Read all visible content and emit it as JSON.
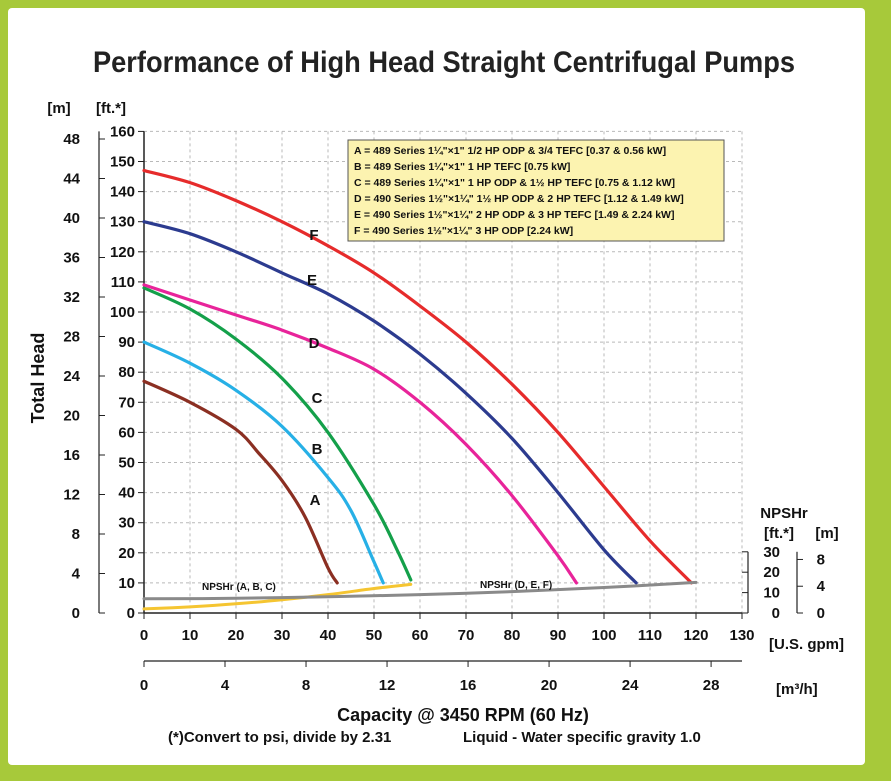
{
  "title": "Performance of High Head Straight Centrifugal Pumps",
  "colors": {
    "frame": "#a7c93a",
    "legend_bg": "#fcf3b0",
    "A": "#8b2f22",
    "B": "#27b0e6",
    "C": "#14a04a",
    "D": "#e8249a",
    "E": "#2c3b8f",
    "F": "#e62b2b",
    "npsh_abc": "#f5c531",
    "npsh_def": "#8a8a8a"
  },
  "chart_data": {
    "type": "line",
    "title": "Performance of High Head Straight Centrifugal Pumps",
    "xlabel": "Capacity @ 3450 RPM (60 Hz)",
    "ylabel": "Total Head",
    "x_unit_primary": "[U.S. gpm]",
    "x_unit_secondary": "[m³/h]",
    "y_unit_ft": "[ft.*]",
    "y_unit_m": "[m]",
    "xlim": [
      0,
      130
    ],
    "ylim": [
      0,
      160
    ],
    "x_ticks": [
      "0",
      "10",
      "20",
      "30",
      "40",
      "50",
      "60",
      "70",
      "80",
      "90",
      "100",
      "110",
      "120",
      "130"
    ],
    "x2_ticks": [
      "0",
      "4",
      "8",
      "12",
      "16",
      "20",
      "24",
      "28"
    ],
    "y_ticks_ft": [
      "0",
      "10",
      "20",
      "30",
      "40",
      "50",
      "60",
      "70",
      "80",
      "90",
      "100",
      "110",
      "120",
      "130",
      "140",
      "150",
      "160"
    ],
    "y_ticks_m": [
      "0",
      "4",
      "8",
      "12",
      "16",
      "20",
      "24",
      "28",
      "32",
      "36",
      "40",
      "44",
      "48"
    ],
    "grid": true,
    "legend": {
      "placement": "top-right",
      "entries": [
        "A = 489 Series 1¼\"×1\" 1/2 HP ODP & 3/4 TEFC [0.37 & 0.56 kW]",
        "B = 489 Series 1¼\"×1\" 1 HP TEFC [0.75 kW]",
        "C = 489 Series 1¼\"×1\" 1 HP ODP & 1½ HP TEFC [0.75 & 1.12 kW]",
        "D = 490 Series 1½\"×1¼\" 1½ HP ODP & 2 HP TEFC [1.12 & 1.49 kW]",
        "E = 490 Series 1½\"×1¼\" 2 HP ODP & 3 HP TEFC [1.49 & 2.24 kW]",
        "F = 490 Series 1½\"×1¼\" 3 HP ODP [2.24 kW]"
      ]
    },
    "series": [
      {
        "name": "A",
        "x": [
          0,
          10,
          20,
          25,
          30,
          35,
          40,
          42
        ],
        "y": [
          77,
          70,
          61,
          53,
          44,
          32,
          15,
          10
        ]
      },
      {
        "name": "B",
        "x": [
          0,
          10,
          20,
          30,
          40,
          45,
          50,
          52
        ],
        "y": [
          90,
          83,
          74,
          62,
          45,
          34,
          17,
          10
        ]
      },
      {
        "name": "C",
        "x": [
          0,
          10,
          20,
          30,
          40,
          50,
          55,
          58
        ],
        "y": [
          108,
          101,
          91,
          78,
          60,
          36,
          21,
          11
        ]
      },
      {
        "name": "D",
        "x": [
          0,
          10,
          20,
          30,
          40,
          50,
          60,
          70,
          80,
          90,
          94
        ],
        "y": [
          109,
          104,
          99,
          94,
          88,
          81,
          70,
          56,
          39,
          19,
          10
        ]
      },
      {
        "name": "E",
        "x": [
          0,
          10,
          20,
          30,
          40,
          50,
          60,
          70,
          80,
          90,
          100,
          107
        ],
        "y": [
          130,
          126,
          120,
          113,
          106,
          97,
          86,
          73,
          58,
          40,
          21,
          10
        ]
      },
      {
        "name": "F",
        "x": [
          0,
          10,
          20,
          30,
          40,
          50,
          60,
          70,
          80,
          90,
          100,
          110,
          119
        ],
        "y": [
          147,
          143,
          137,
          130,
          122,
          113,
          102,
          90,
          76,
          60,
          42,
          24,
          10
        ]
      }
    ],
    "npsh": {
      "y_label": "NPSHr",
      "unit_ft": "[ft.*]",
      "unit_m": "[m]",
      "ticks_ft": [
        "0",
        "10",
        "20",
        "30"
      ],
      "ticks_m": [
        "0",
        "4",
        "8"
      ],
      "ylim_ft": [
        0,
        30
      ],
      "series": [
        {
          "name": "NPSHr (A, B, C)",
          "x": [
            0,
            10,
            20,
            30,
            40,
            50,
            58
          ],
          "y_ft": [
            2,
            3,
            4.5,
            6.5,
            9,
            12,
            14
          ]
        },
        {
          "name": "NPSHr (D, E, F)",
          "x": [
            0,
            20,
            40,
            60,
            80,
            100,
            120
          ],
          "y_ft": [
            7,
            7.2,
            8,
            9,
            10.5,
            12.5,
            15
          ]
        }
      ]
    }
  },
  "footer": {
    "capacity_label": "Capacity @ 3450 RPM (60 Hz)",
    "note_left": "(*)Convert to psi, divide by 2.31",
    "note_right": "Liquid - Water specific gravity 1.0"
  }
}
